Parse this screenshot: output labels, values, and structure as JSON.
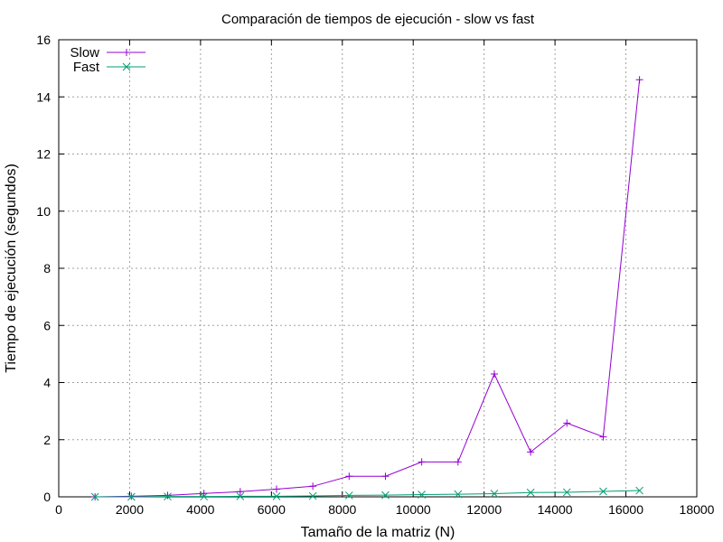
{
  "chart_data": {
    "type": "line",
    "title": "Comparación de tiempos de ejecución - slow vs fast",
    "xlabel": "Tamaño de la matriz (N)",
    "ylabel": "Tiempo de ejecución (segundos)",
    "xlim": [
      0,
      18000
    ],
    "ylim": [
      0,
      16
    ],
    "xticks": [
      "0",
      "2000",
      "4000",
      "6000",
      "8000",
      "10000",
      "12000",
      "14000",
      "16000",
      "18000"
    ],
    "yticks": [
      "0",
      "2",
      "4",
      "6",
      "8",
      "10",
      "12",
      "14",
      "16"
    ],
    "grid": true,
    "legend_position": "top-left",
    "x": [
      1024,
      2048,
      3072,
      4096,
      5120,
      6144,
      7168,
      8192,
      9216,
      10240,
      11264,
      12288,
      13312,
      14336,
      15360,
      16384
    ],
    "series": [
      {
        "name": "Slow",
        "color": "#9400d3",
        "marker": "plus",
        "values": [
          0.0,
          0.02,
          0.05,
          0.12,
          0.18,
          0.27,
          0.37,
          0.72,
          0.72,
          1.22,
          1.22,
          4.3,
          1.57,
          2.58,
          2.1,
          14.6
        ]
      },
      {
        "name": "Fast",
        "color": "#009e73",
        "marker": "cross",
        "values": [
          0.0,
          0.0,
          0.01,
          0.01,
          0.02,
          0.02,
          0.03,
          0.05,
          0.06,
          0.08,
          0.09,
          0.11,
          0.15,
          0.16,
          0.19,
          0.22
        ]
      }
    ]
  }
}
